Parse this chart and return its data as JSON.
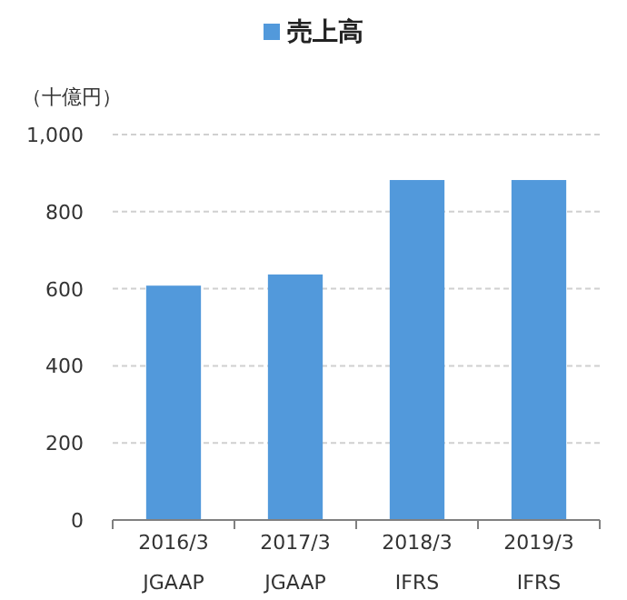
{
  "chart_data": {
    "type": "bar",
    "ylabel": "（十億円）",
    "categories": [
      "2016/3\nJGAAP",
      "2017/3\nJGAAP",
      "2018/3\nIFRS",
      "2019/3\nIFRS"
    ],
    "series": [
      {
        "name": "売上高",
        "color": "#5299db",
        "values": [
          608,
          637,
          882,
          882
        ]
      }
    ],
    "ylim": [
      0,
      1000
    ],
    "yticks": [
      0,
      200,
      400,
      600,
      800,
      {
        "value": 1000,
        "label": "1,000"
      }
    ],
    "grid": "y",
    "legend": "top"
  }
}
